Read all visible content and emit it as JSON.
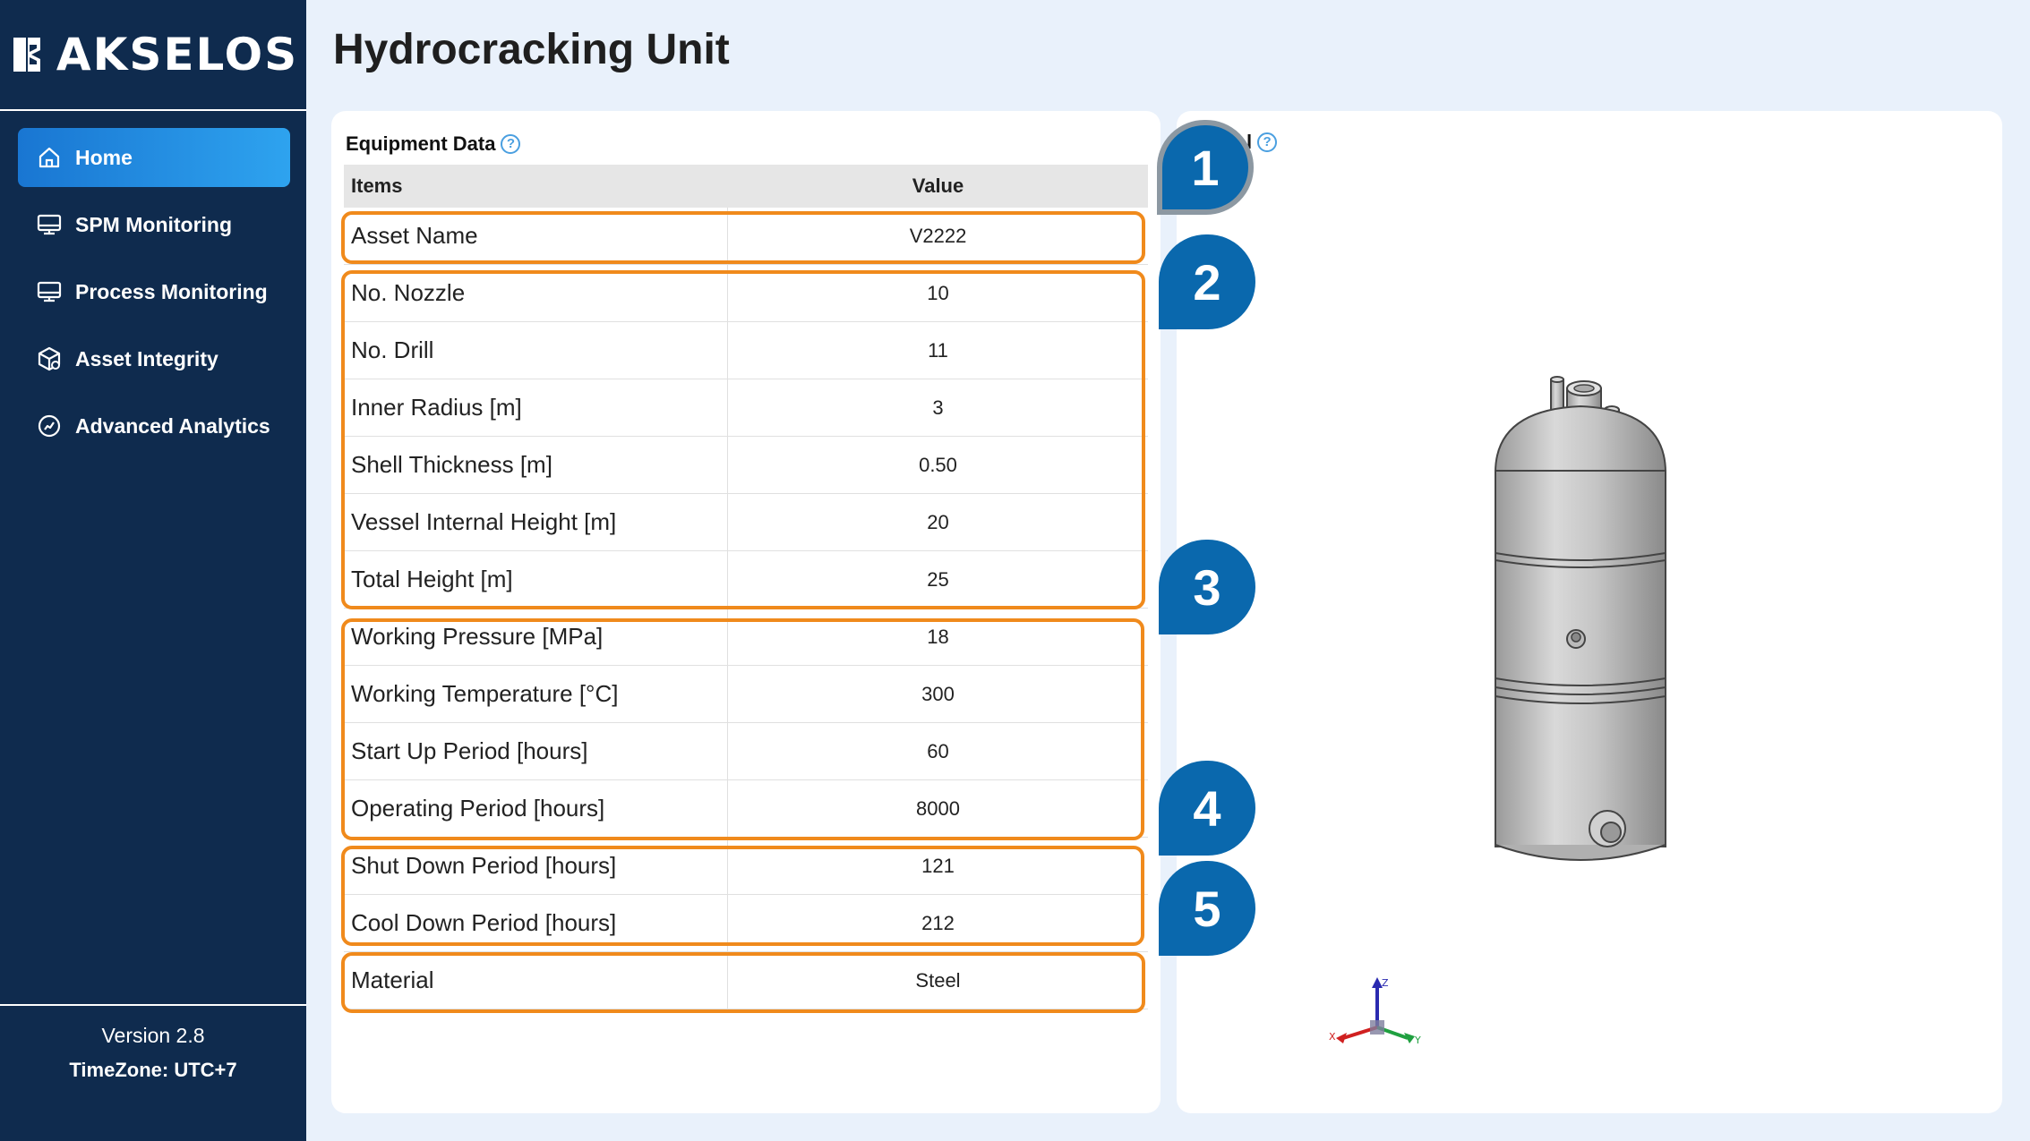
{
  "brand": {
    "name": "AKSELOS"
  },
  "page": {
    "title": "Hydrocracking Unit"
  },
  "sidebar": {
    "items": [
      {
        "label": "Home",
        "icon": "home-icon",
        "active": true
      },
      {
        "label": "SPM Monitoring",
        "icon": "monitor-icon",
        "active": false
      },
      {
        "label": "Process Monitoring",
        "icon": "monitor-icon",
        "active": false
      },
      {
        "label": "Asset Integrity",
        "icon": "cube-icon",
        "active": false
      },
      {
        "label": "Advanced Analytics",
        "icon": "analytics-icon",
        "active": false
      }
    ],
    "version": "Version 2.8",
    "timezone": "TimeZone: UTC+7"
  },
  "equipment": {
    "title": "Equipment Data",
    "headers": {
      "items": "Items",
      "value": "Value"
    },
    "rows": [
      {
        "item": "Asset Name",
        "value": "V2222"
      },
      {
        "item": "No. Nozzle",
        "value": "10"
      },
      {
        "item": "No. Drill",
        "value": "11"
      },
      {
        "item": "Inner Radius [m]",
        "value": "3"
      },
      {
        "item": "Shell Thickness [m]",
        "value": "0.50"
      },
      {
        "item": "Vessel Internal Height [m]",
        "value": "20"
      },
      {
        "item": "Total Height [m]",
        "value": "25"
      },
      {
        "item": "Working Pressure [MPa]",
        "value": "18"
      },
      {
        "item": "Working Temperature [°C]",
        "value": "300"
      },
      {
        "item": "Start Up Period [hours]",
        "value": "60"
      },
      {
        "item": "Operating Period [hours]",
        "value": "8000"
      },
      {
        "item": "Shut Down Period [hours]",
        "value": "121"
      },
      {
        "item": "Cool Down Period [hours]",
        "value": "212"
      },
      {
        "item": "Material",
        "value": "Steel"
      }
    ]
  },
  "model_panel": {
    "title_fragment": "l"
  },
  "callouts": [
    "1",
    "2",
    "3",
    "4",
    "5"
  ],
  "axes": {
    "x": "X",
    "y": "Y",
    "z": "Z"
  },
  "colors": {
    "sidebar": "#0f2b4e",
    "accent": "#1976d2",
    "highlight": "#f08a1c",
    "badge": "#0a68ad"
  }
}
